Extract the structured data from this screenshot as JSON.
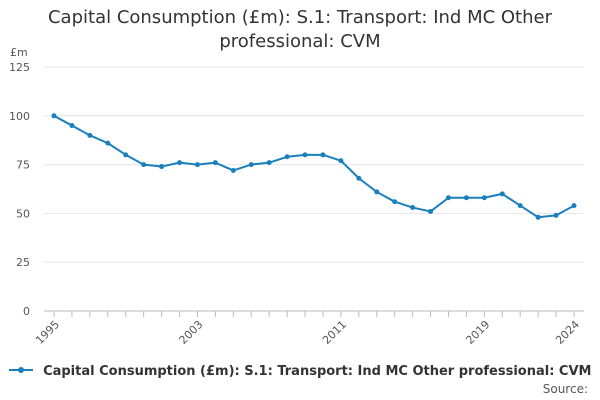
{
  "chart_data": {
    "type": "line",
    "title_lines": [
      "Capital Consumption (£m): S.1: Transport: Ind MC Other",
      "professional: CVM"
    ],
    "ylabel": "£m",
    "ylim": [
      0,
      125
    ],
    "yticks": [
      0,
      25,
      50,
      75,
      100,
      125
    ],
    "xticks": [
      1995,
      2003,
      2011,
      2019,
      2024
    ],
    "grid": true,
    "legend_position": "bottom",
    "series": [
      {
        "name": "Capital Consumption (£m): S.1: Transport: Ind MC Other professional: CVM",
        "color": "#1a80bd",
        "x": [
          1995,
          1996,
          1997,
          1998,
          1999,
          2000,
          2001,
          2002,
          2003,
          2004,
          2005,
          2006,
          2007,
          2008,
          2009,
          2010,
          2011,
          2012,
          2013,
          2014,
          2015,
          2016,
          2017,
          2018,
          2019,
          2020,
          2021,
          2022,
          2023,
          2024
        ],
        "values": [
          100,
          95,
          90,
          86,
          80,
          75,
          74,
          76,
          75,
          76,
          72,
          75,
          76,
          79,
          80,
          80,
          77,
          68,
          61,
          56,
          53,
          51,
          58,
          58,
          58,
          60,
          54,
          48,
          49,
          54
        ]
      }
    ],
    "source_label": "Source:"
  }
}
